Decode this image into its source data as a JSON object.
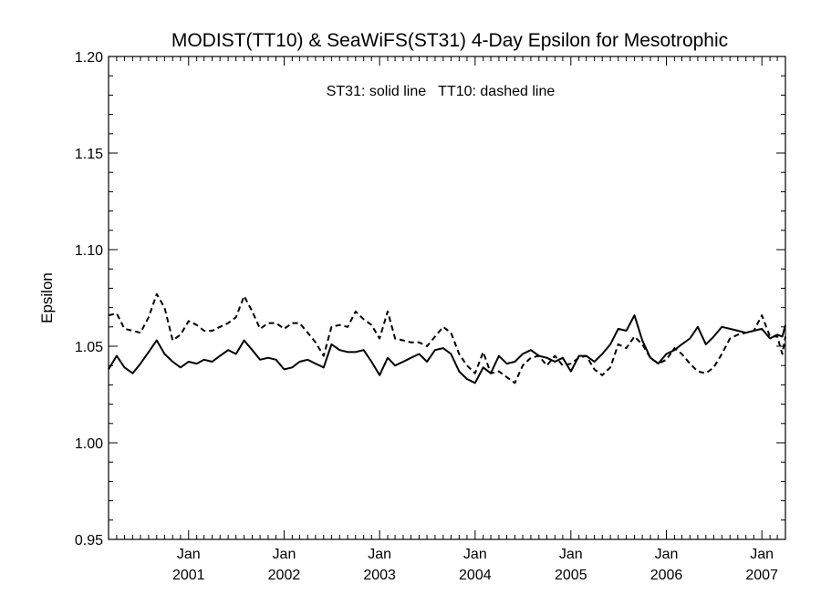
{
  "chart_data": {
    "type": "line",
    "title": "MODIST(TT10) & SeaWiFS(ST31) 4-Day Epsilon for Mesotrophic",
    "annotation": "ST31: solid line   TT10: dashed line",
    "xlabel": "",
    "ylabel": "Epsilon",
    "xlim": [
      "2000-03-01",
      "2007-04-01"
    ],
    "ylim": [
      0.95,
      1.2
    ],
    "y_ticks": [
      "0.95",
      "1.00",
      "1.05",
      "1.10",
      "1.15",
      "1.20"
    ],
    "x_ticks": [
      {
        "date": "2001-01-01",
        "month": "Jan",
        "year": "2001"
      },
      {
        "date": "2002-01-01",
        "month": "Jan",
        "year": "2002"
      },
      {
        "date": "2003-01-01",
        "month": "Jan",
        "year": "2003"
      },
      {
        "date": "2004-01-01",
        "month": "Jan",
        "year": "2004"
      },
      {
        "date": "2005-01-01",
        "month": "Jan",
        "year": "2005"
      },
      {
        "date": "2006-01-01",
        "month": "Jan",
        "year": "2006"
      },
      {
        "date": "2007-01-01",
        "month": "Jan",
        "year": "2007"
      }
    ],
    "series": [
      {
        "name": "ST31",
        "style": "solid",
        "points": [
          [
            "2000-03-01",
            1.038
          ],
          [
            "2000-04-01",
            1.045
          ],
          [
            "2000-05-01",
            1.039
          ],
          [
            "2000-06-01",
            1.036
          ],
          [
            "2000-07-01",
            1.041
          ],
          [
            "2000-08-01",
            1.047
          ],
          [
            "2000-09-01",
            1.053
          ],
          [
            "2000-10-01",
            1.046
          ],
          [
            "2000-11-01",
            1.042
          ],
          [
            "2000-12-01",
            1.039
          ],
          [
            "2001-01-01",
            1.042
          ],
          [
            "2001-02-01",
            1.041
          ],
          [
            "2001-03-01",
            1.043
          ],
          [
            "2001-04-01",
            1.042
          ],
          [
            "2001-05-01",
            1.045
          ],
          [
            "2001-06-01",
            1.048
          ],
          [
            "2001-07-01",
            1.046
          ],
          [
            "2001-08-01",
            1.053
          ],
          [
            "2001-09-01",
            1.048
          ],
          [
            "2001-10-01",
            1.043
          ],
          [
            "2001-11-01",
            1.044
          ],
          [
            "2001-12-01",
            1.043
          ],
          [
            "2002-01-01",
            1.038
          ],
          [
            "2002-02-01",
            1.039
          ],
          [
            "2002-03-01",
            1.042
          ],
          [
            "2002-04-01",
            1.043
          ],
          [
            "2002-05-01",
            1.041
          ],
          [
            "2002-06-01",
            1.039
          ],
          [
            "2002-07-01",
            1.051
          ],
          [
            "2002-08-01",
            1.048
          ],
          [
            "2002-09-01",
            1.047
          ],
          [
            "2002-10-01",
            1.047
          ],
          [
            "2002-11-01",
            1.048
          ],
          [
            "2002-12-01",
            1.042
          ],
          [
            "2003-01-01",
            1.035
          ],
          [
            "2003-02-01",
            1.044
          ],
          [
            "2003-03-01",
            1.04
          ],
          [
            "2003-04-01",
            1.042
          ],
          [
            "2003-05-01",
            1.044
          ],
          [
            "2003-06-01",
            1.046
          ],
          [
            "2003-07-01",
            1.042
          ],
          [
            "2003-08-01",
            1.048
          ],
          [
            "2003-09-01",
            1.049
          ],
          [
            "2003-10-01",
            1.046
          ],
          [
            "2003-11-01",
            1.037
          ],
          [
            "2003-12-01",
            1.033
          ],
          [
            "2004-01-01",
            1.031
          ],
          [
            "2004-02-01",
            1.039
          ],
          [
            "2004-03-01",
            1.036
          ],
          [
            "2004-04-01",
            1.045
          ],
          [
            "2004-05-01",
            1.041
          ],
          [
            "2004-06-01",
            1.042
          ],
          [
            "2004-07-01",
            1.046
          ],
          [
            "2004-08-01",
            1.048
          ],
          [
            "2004-09-01",
            1.045
          ],
          [
            "2004-10-01",
            1.044
          ],
          [
            "2004-11-01",
            1.042
          ],
          [
            "2004-12-01",
            1.044
          ],
          [
            "2005-01-01",
            1.037
          ],
          [
            "2005-02-01",
            1.045
          ],
          [
            "2005-03-01",
            1.045
          ],
          [
            "2005-04-01",
            1.042
          ],
          [
            "2005-05-01",
            1.046
          ],
          [
            "2005-06-01",
            1.051
          ],
          [
            "2005-07-01",
            1.059
          ],
          [
            "2005-08-01",
            1.058
          ],
          [
            "2005-09-01",
            1.066
          ],
          [
            "2005-10-01",
            1.053
          ],
          [
            "2005-11-01",
            1.044
          ],
          [
            "2005-12-01",
            1.041
          ],
          [
            "2006-01-01",
            1.046
          ],
          [
            "2006-02-01",
            1.048
          ],
          [
            "2006-03-01",
            1.051
          ],
          [
            "2006-04-01",
            1.054
          ],
          [
            "2006-05-01",
            1.06
          ],
          [
            "2006-06-01",
            1.051
          ],
          [
            "2006-07-01",
            1.055
          ],
          [
            "2006-08-01",
            1.06
          ],
          [
            "2006-09-01",
            1.059
          ],
          [
            "2006-10-01",
            1.058
          ],
          [
            "2006-11-01",
            1.057
          ],
          [
            "2006-12-01",
            1.058
          ],
          [
            "2007-01-01",
            1.059
          ],
          [
            "2007-02-01",
            1.054
          ],
          [
            "2007-03-01",
            1.056
          ],
          [
            "2007-03-20",
            1.055
          ],
          [
            "2007-04-01",
            1.061
          ]
        ]
      },
      {
        "name": "TT10",
        "style": "dashed",
        "points": [
          [
            "2000-03-01",
            1.066
          ],
          [
            "2000-04-01",
            1.067
          ],
          [
            "2000-05-01",
            1.059
          ],
          [
            "2000-06-01",
            1.058
          ],
          [
            "2000-07-01",
            1.057
          ],
          [
            "2000-08-01",
            1.065
          ],
          [
            "2000-09-01",
            1.077
          ],
          [
            "2000-10-01",
            1.07
          ],
          [
            "2000-11-01",
            1.053
          ],
          [
            "2000-12-01",
            1.056
          ],
          [
            "2001-01-01",
            1.063
          ],
          [
            "2001-02-01",
            1.061
          ],
          [
            "2001-03-01",
            1.058
          ],
          [
            "2001-04-01",
            1.058
          ],
          [
            "2001-05-01",
            1.06
          ],
          [
            "2001-06-01",
            1.062
          ],
          [
            "2001-07-01",
            1.065
          ],
          [
            "2001-08-01",
            1.076
          ],
          [
            "2001-09-01",
            1.068
          ],
          [
            "2001-10-01",
            1.059
          ],
          [
            "2001-11-01",
            1.062
          ],
          [
            "2001-12-01",
            1.062
          ],
          [
            "2002-01-01",
            1.059
          ],
          [
            "2002-02-01",
            1.062
          ],
          [
            "2002-03-01",
            1.062
          ],
          [
            "2002-04-01",
            1.057
          ],
          [
            "2002-05-01",
            1.052
          ],
          [
            "2002-06-01",
            1.045
          ],
          [
            "2002-07-01",
            1.06
          ],
          [
            "2002-08-01",
            1.061
          ],
          [
            "2002-09-01",
            1.06
          ],
          [
            "2002-10-01",
            1.068
          ],
          [
            "2002-11-01",
            1.064
          ],
          [
            "2002-12-01",
            1.061
          ],
          [
            "2003-01-01",
            1.054
          ],
          [
            "2003-02-01",
            1.068
          ],
          [
            "2003-03-01",
            1.054
          ],
          [
            "2003-04-01",
            1.053
          ],
          [
            "2003-05-01",
            1.052
          ],
          [
            "2003-06-01",
            1.052
          ],
          [
            "2003-07-01",
            1.05
          ],
          [
            "2003-08-01",
            1.055
          ],
          [
            "2003-09-01",
            1.06
          ],
          [
            "2003-10-01",
            1.057
          ],
          [
            "2003-11-01",
            1.046
          ],
          [
            "2003-12-01",
            1.04
          ],
          [
            "2004-01-01",
            1.036
          ],
          [
            "2004-02-01",
            1.047
          ],
          [
            "2004-03-01",
            1.036
          ],
          [
            "2004-04-01",
            1.037
          ],
          [
            "2004-05-01",
            1.034
          ],
          [
            "2004-06-01",
            1.031
          ],
          [
            "2004-07-01",
            1.04
          ],
          [
            "2004-08-01",
            1.044
          ],
          [
            "2004-09-01",
            1.045
          ],
          [
            "2004-10-01",
            1.04
          ],
          [
            "2004-11-01",
            1.045
          ],
          [
            "2004-12-01",
            1.04
          ],
          [
            "2005-01-01",
            1.041
          ],
          [
            "2005-02-01",
            1.044
          ],
          [
            "2005-03-01",
            1.045
          ],
          [
            "2005-04-01",
            1.038
          ],
          [
            "2005-05-01",
            1.035
          ],
          [
            "2005-06-01",
            1.039
          ],
          [
            "2005-07-01",
            1.051
          ],
          [
            "2005-08-01",
            1.049
          ],
          [
            "2005-09-01",
            1.055
          ],
          [
            "2005-10-01",
            1.051
          ],
          [
            "2005-11-01",
            1.044
          ],
          [
            "2005-12-01",
            1.041
          ],
          [
            "2006-01-01",
            1.043
          ],
          [
            "2006-02-01",
            1.049
          ],
          [
            "2006-03-01",
            1.046
          ],
          [
            "2006-04-01",
            1.041
          ],
          [
            "2006-05-01",
            1.037
          ],
          [
            "2006-06-01",
            1.036
          ],
          [
            "2006-07-01",
            1.039
          ],
          [
            "2006-08-01",
            1.046
          ],
          [
            "2006-09-01",
            1.054
          ],
          [
            "2006-10-01",
            1.056
          ],
          [
            "2006-11-01",
            1.057
          ],
          [
            "2006-12-01",
            1.058
          ],
          [
            "2007-01-01",
            1.066
          ],
          [
            "2007-02-01",
            1.055
          ],
          [
            "2007-03-01",
            1.055
          ],
          [
            "2007-03-20",
            1.046
          ],
          [
            "2007-04-01",
            1.055
          ]
        ]
      }
    ]
  }
}
